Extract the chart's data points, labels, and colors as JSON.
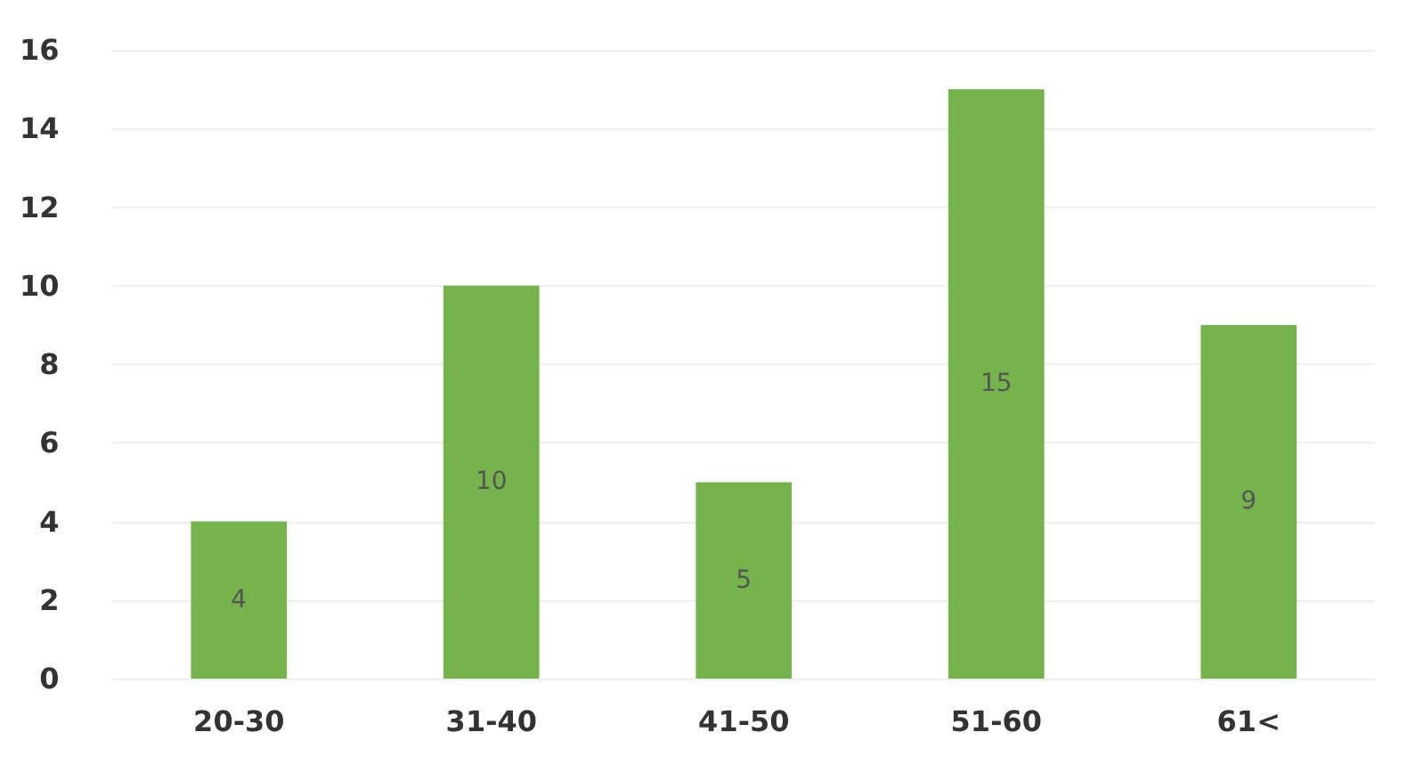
{
  "chart_data": {
    "type": "bar",
    "categories": [
      "20-30",
      "31-40",
      "41-50",
      "51-60",
      "61<"
    ],
    "values": [
      4,
      10,
      5,
      15,
      9
    ],
    "color": "#74b44a",
    "ylim": [
      0,
      16
    ],
    "yticks": [
      0,
      2,
      4,
      6,
      8,
      10,
      12,
      14,
      16
    ],
    "grid": "y",
    "data_labels": true
  }
}
